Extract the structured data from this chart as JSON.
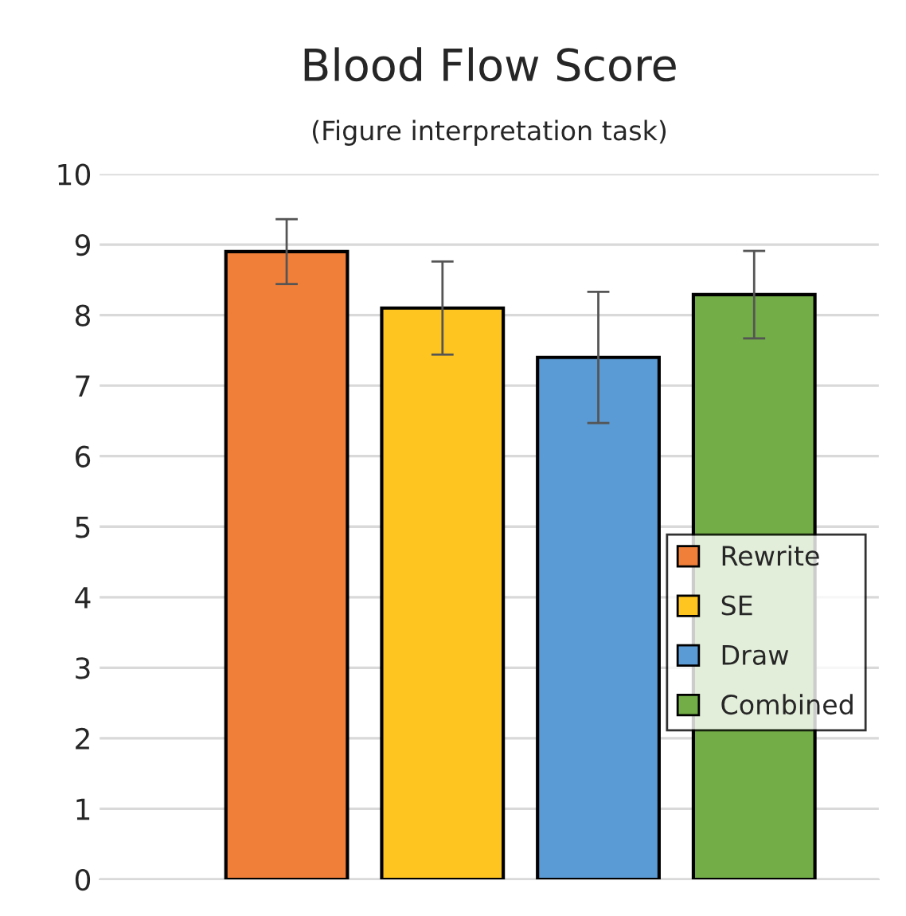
{
  "chart_data": {
    "type": "bar",
    "title": "Blood Flow Score",
    "subtitle": "(Figure interpretation task)",
    "categories": [
      null,
      null,
      null,
      null
    ],
    "series": [
      {
        "name": "Rewrite",
        "color": "#f07f3a",
        "values": [
          8.9,
          null,
          null,
          null
        ],
        "errors": [
          0.46,
          null,
          null,
          null
        ]
      },
      {
        "name": "SE",
        "color": "#fec520",
        "values": [
          null,
          8.1,
          null,
          null
        ],
        "errors": [
          null,
          0.66,
          null,
          null
        ]
      },
      {
        "name": "Draw",
        "color": "#5b9bd5",
        "values": [
          null,
          null,
          7.4,
          null
        ],
        "errors": [
          null,
          null,
          0.93,
          null
        ]
      },
      {
        "name": "Combined",
        "color": "#72ad47",
        "values": [
          null,
          null,
          null,
          8.29
        ],
        "errors": [
          null,
          null,
          null,
          0.62
        ]
      }
    ],
    "ylim": [
      0,
      10
    ],
    "yticks": [
      0,
      1,
      2,
      3,
      4,
      5,
      6,
      7,
      8,
      9,
      10
    ],
    "grid": "y",
    "legend": "right",
    "tick_labels": "y"
  }
}
